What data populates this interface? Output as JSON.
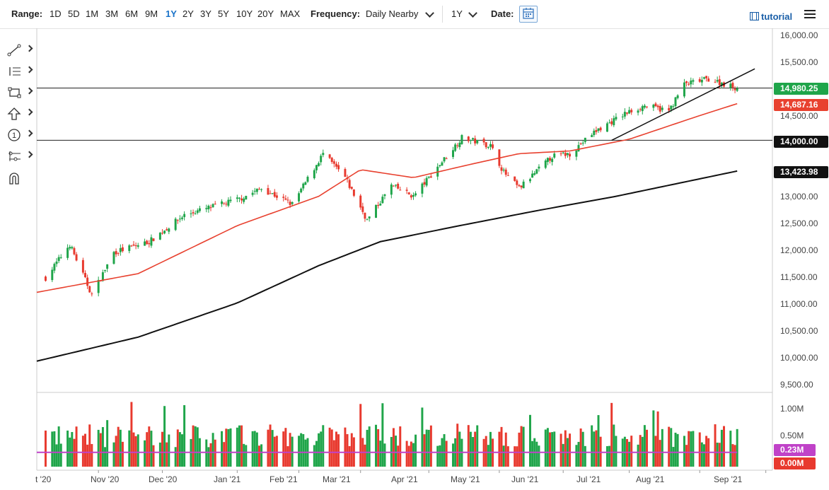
{
  "toolbar": {
    "range_label": "Range:",
    "ranges": [
      "1D",
      "5D",
      "1M",
      "3M",
      "6M",
      "9M",
      "1Y",
      "2Y",
      "3Y",
      "5Y",
      "10Y",
      "20Y",
      "MAX"
    ],
    "active_range": "1Y",
    "frequency_label": "Frequency:",
    "frequency_value": "Daily Nearby",
    "period_value": "1Y",
    "date_label": "Date:",
    "tutorial_label": "tutorial"
  },
  "side_tools": [
    "trendline-tool-icon",
    "fibonacci-tool-icon",
    "rectangle-tool-icon",
    "arrow-tool-icon",
    "annotation-tool-icon",
    "pattern-tool-icon",
    "magnet-icon"
  ],
  "annotation_label": "1",
  "y_axis": {
    "labels": [
      "16,000.00",
      "15,500.00",
      "14,500.00",
      "13,000.00",
      "12,500.00",
      "12,000.00",
      "11,500.00",
      "11,000.00",
      "10,500.00",
      "10,000.00",
      "9,500.00"
    ]
  },
  "volume_axis": {
    "labels": [
      "1.00M",
      "0.50M"
    ]
  },
  "badges": {
    "last_price": "14,980.25",
    "ma50": "14,687.16",
    "level_line": "14,000.00",
    "ma200": "13,423.98",
    "volume_avg": "0.23M",
    "volume_last": "0.00M"
  },
  "x_axis": [
    "t '20",
    "Nov '20",
    "Dec '20",
    "Jan '21",
    "Feb '21",
    "Mar '21",
    "Apr '21",
    "May '21",
    "Jun '21",
    "Jul '21",
    "Aug '21",
    "Sep '21"
  ],
  "colors": {
    "up": "#1fa54a",
    "down": "#e8392e",
    "ma50": "#e8412f",
    "ma200": "#111111",
    "volume_avg": "#c042c8",
    "accent": "#1a73c9"
  },
  "chart_data": {
    "type": "candlestick",
    "y_range": [
      9300,
      16100
    ],
    "horizontal_levels": [
      14980.25,
      14000
    ],
    "trendline": {
      "from": {
        "date": "2021-06-23",
        "value": 14000
      },
      "to": {
        "date": "2021-08-27",
        "value": 15340
      }
    },
    "anchors": [
      {
        "date": "2020-10-09",
        "close": 11420
      },
      {
        "date": "2020-10-20",
        "close": 12050
      },
      {
        "date": "2020-10-30",
        "close": 11100
      },
      {
        "date": "2020-11-09",
        "close": 11900
      },
      {
        "date": "2020-11-25",
        "close": 12100
      },
      {
        "date": "2020-12-11",
        "close": 12600
      },
      {
        "date": "2021-01-05",
        "close": 12900
      },
      {
        "date": "2021-01-15",
        "close": 13100
      },
      {
        "date": "2021-01-29",
        "close": 12800
      },
      {
        "date": "2021-02-12",
        "close": 13750
      },
      {
        "date": "2021-02-22",
        "close": 13300
      },
      {
        "date": "2021-03-04",
        "close": 12500
      },
      {
        "date": "2021-03-15",
        "close": 13150
      },
      {
        "date": "2021-03-25",
        "close": 12950
      },
      {
        "date": "2021-04-16",
        "close": 14050
      },
      {
        "date": "2021-04-29",
        "close": 13900
      },
      {
        "date": "2021-05-05",
        "close": 13400
      },
      {
        "date": "2021-05-12",
        "close": 13100
      },
      {
        "date": "2021-05-27",
        "close": 13700
      },
      {
        "date": "2021-06-04",
        "close": 13750
      },
      {
        "date": "2021-06-15",
        "close": 14150
      },
      {
        "date": "2021-06-29",
        "close": 14500
      },
      {
        "date": "2021-07-08",
        "close": 14650
      },
      {
        "date": "2021-07-19",
        "close": 14550
      },
      {
        "date": "2021-07-26",
        "close": 15050
      },
      {
        "date": "2021-08-06",
        "close": 15150
      },
      {
        "date": "2021-08-19",
        "close": 14980
      }
    ],
    "ma50_anchors": [
      {
        "date": "2020-10-05",
        "value": 11150
      },
      {
        "date": "2020-11-20",
        "value": 11500
      },
      {
        "date": "2021-01-04",
        "value": 12400
      },
      {
        "date": "2021-02-10",
        "value": 12950
      },
      {
        "date": "2021-03-01",
        "value": 13450
      },
      {
        "date": "2021-03-25",
        "value": 13300
      },
      {
        "date": "2021-04-20",
        "value": 13550
      },
      {
        "date": "2021-05-12",
        "value": 13750
      },
      {
        "date": "2021-06-04",
        "value": 13800
      },
      {
        "date": "2021-07-01",
        "value": 14020
      },
      {
        "date": "2021-08-01",
        "value": 14450
      },
      {
        "date": "2021-08-19",
        "value": 14687.16
      }
    ],
    "ma200_anchors": [
      {
        "date": "2020-10-05",
        "value": 9860
      },
      {
        "date": "2020-11-20",
        "value": 10310
      },
      {
        "date": "2021-01-04",
        "value": 10950
      },
      {
        "date": "2021-02-10",
        "value": 11650
      },
      {
        "date": "2021-03-10",
        "value": 12100
      },
      {
        "date": "2021-04-15",
        "value": 12400
      },
      {
        "date": "2021-05-20",
        "value": 12680
      },
      {
        "date": "2021-06-25",
        "value": 12950
      },
      {
        "date": "2021-08-19",
        "value": 13423.98
      }
    ],
    "volume_range": [
      0,
      1.12
    ],
    "volume_avg": 0.23,
    "volume_avg_level": 0.22,
    "volume_last": 0.0
  }
}
